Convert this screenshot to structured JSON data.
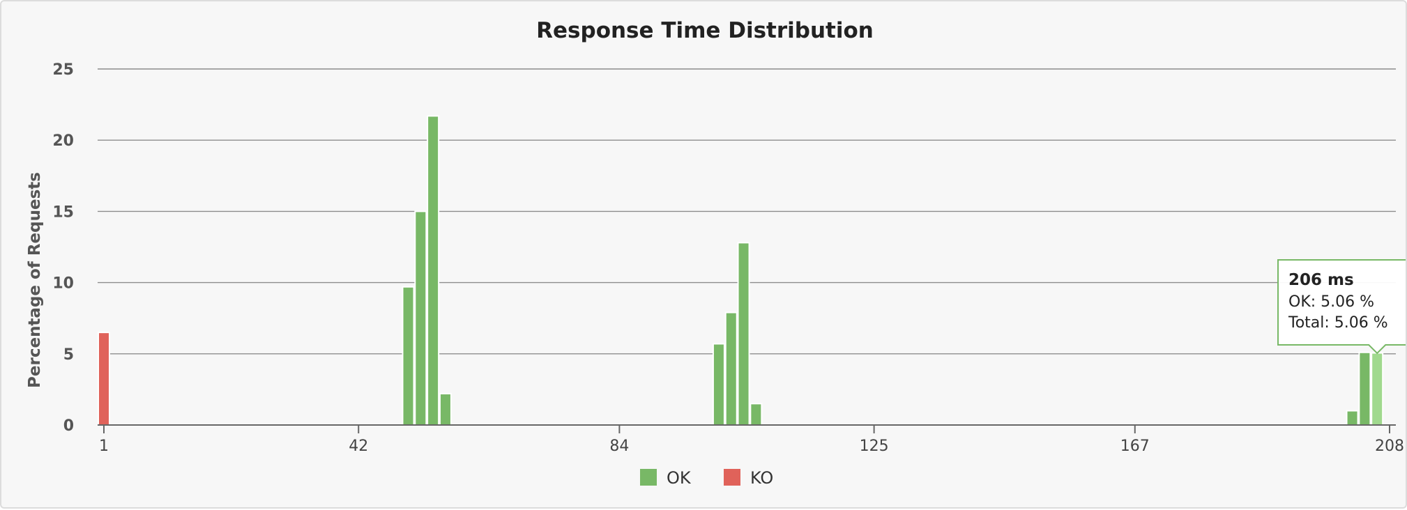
{
  "colors": {
    "ok": "#78b866",
    "ok_highlight": "#a0d98e",
    "ko": "#e0625a",
    "tooltip_border": "#78b866"
  },
  "chart_data": {
    "type": "bar",
    "title": "Response Time Distribution",
    "ylabel": "Percentage of Requests",
    "xlabel": "",
    "xlim": [
      1,
      208
    ],
    "ylim": [
      0,
      25
    ],
    "x_ticks": [
      1,
      42,
      84,
      125,
      167,
      208
    ],
    "y_ticks": [
      0,
      5,
      10,
      15,
      20,
      25
    ],
    "grid": true,
    "legend_position": "bottom-center",
    "series": [
      {
        "name": "OK",
        "points": [
          {
            "x": 50,
            "y": 9.7
          },
          {
            "x": 52,
            "y": 15.0
          },
          {
            "x": 54,
            "y": 21.7
          },
          {
            "x": 56,
            "y": 2.2
          },
          {
            "x": 100,
            "y": 5.7
          },
          {
            "x": 102,
            "y": 7.9
          },
          {
            "x": 104,
            "y": 12.8
          },
          {
            "x": 106,
            "y": 1.5
          },
          {
            "x": 202,
            "y": 1.0
          },
          {
            "x": 204,
            "y": 5.1
          },
          {
            "x": 206,
            "y": 5.06
          }
        ]
      },
      {
        "name": "KO",
        "points": [
          {
            "x": 1,
            "y": 6.5
          }
        ]
      }
    ],
    "tooltip": {
      "x": 206,
      "title": "206 ms",
      "lines": [
        "OK: 5.06 %",
        "Total: 5.06 %"
      ]
    }
  }
}
